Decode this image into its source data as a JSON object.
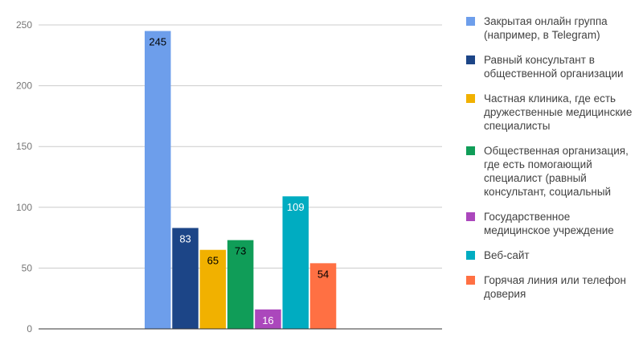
{
  "chart_data": {
    "type": "bar",
    "title": "",
    "xlabel": "",
    "ylabel": "",
    "ylim": [
      0,
      250
    ],
    "yticks": [
      0,
      50,
      100,
      150,
      200,
      250
    ],
    "grid": true,
    "legend_position": "right",
    "series": [
      {
        "name": "Закрытая онлайн группа (например, в Telegram)",
        "value": 245,
        "color": "#6d9eeb",
        "label_color": "#000000"
      },
      {
        "name": "Равный консультант в общественной организации",
        "value": 83,
        "color": "#1c4587",
        "label_color": "#ffffff"
      },
      {
        "name": "Частная клиника, где есть дружественные медицинские специалисты",
        "value": 65,
        "color": "#f1b100",
        "label_color": "#000000"
      },
      {
        "name": "Общественная организация, где есть помогающий специалист (равный консультант, социальный",
        "value": 73,
        "color": "#109d58",
        "label_color": "#000000"
      },
      {
        "name": "Государственное медицинское учреждение",
        "value": 16,
        "color": "#ab47bc",
        "label_color": "#ffffff"
      },
      {
        "name": "Веб-сайт",
        "value": 109,
        "color": "#00acc1",
        "label_color": "#ffffff"
      },
      {
        "name": "Горячая линия или телефон доверия",
        "value": 54,
        "color": "#ff7043",
        "label_color": "#000000"
      }
    ]
  }
}
